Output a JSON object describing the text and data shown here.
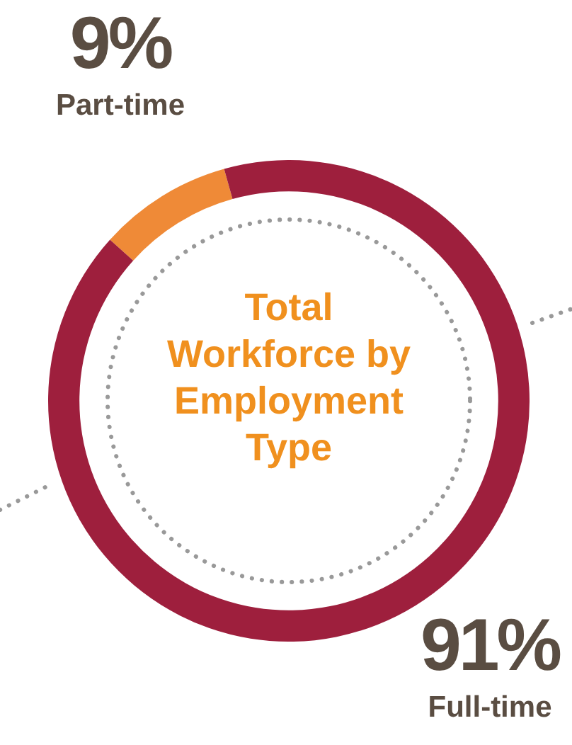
{
  "chart_data": {
    "type": "donut",
    "title": "Total Workforce by Employment Type",
    "categories": [
      "Part-time",
      "Full-time"
    ],
    "values": [
      9,
      91
    ],
    "colors": [
      "#ef8a37",
      "#9e1f3d"
    ],
    "value_labels": [
      "9%",
      "91%"
    ]
  }
}
